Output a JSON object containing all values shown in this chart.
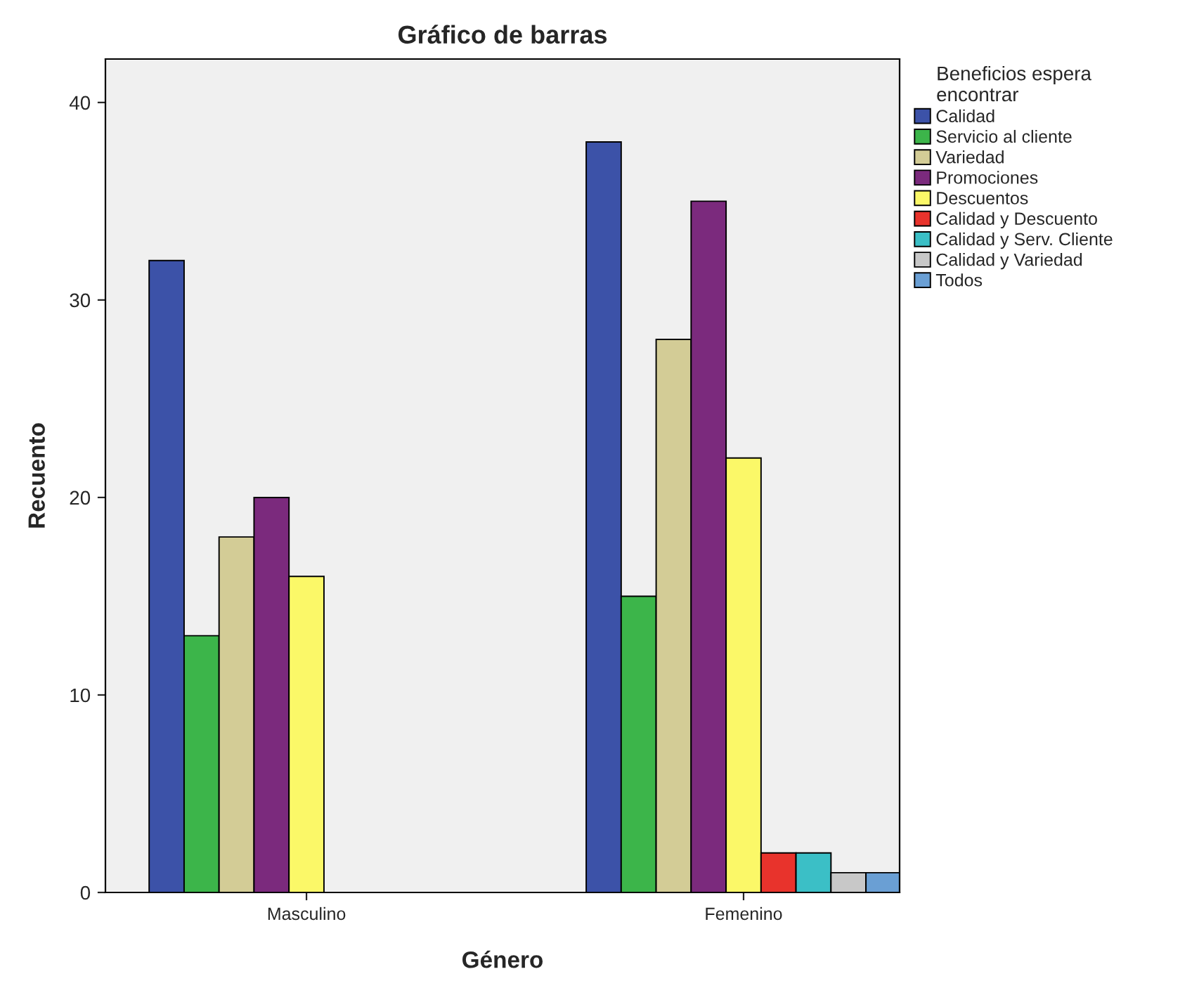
{
  "chart_data": {
    "type": "bar",
    "title": "Gráfico de barras",
    "xlabel": "Género",
    "ylabel": "Recuento",
    "legend_title": "Beneficios espera\nencontrar",
    "categories": [
      "Masculino",
      "Femenino"
    ],
    "series": [
      {
        "name": "Calidad",
        "color": "#3c52a8",
        "values": [
          32,
          38
        ]
      },
      {
        "name": "Servicio al cliente",
        "color": "#3cb54a",
        "values": [
          13,
          15
        ]
      },
      {
        "name": "Variedad",
        "color": "#d3cc96",
        "values": [
          18,
          28
        ]
      },
      {
        "name": "Promociones",
        "color": "#7b2a7d",
        "values": [
          20,
          35
        ]
      },
      {
        "name": "Descuentos",
        "color": "#fbf868",
        "values": [
          16,
          22
        ]
      },
      {
        "name": "Calidad y Descuento",
        "color": "#e8332c",
        "values": [
          null,
          2
        ]
      },
      {
        "name": "Calidad y Serv. Cliente",
        "color": "#3bbfc6",
        "values": [
          null,
          2
        ]
      },
      {
        "name": "Calidad y Variedad",
        "color": "#c8c8c8",
        "values": [
          null,
          1
        ]
      },
      {
        "name": "Todos",
        "color": "#6a9fd4",
        "values": [
          null,
          1
        ]
      }
    ],
    "ylim": [
      0,
      42.2
    ],
    "yticks": [
      0,
      10,
      20,
      30,
      40
    ],
    "grid": false,
    "legend": "right"
  }
}
